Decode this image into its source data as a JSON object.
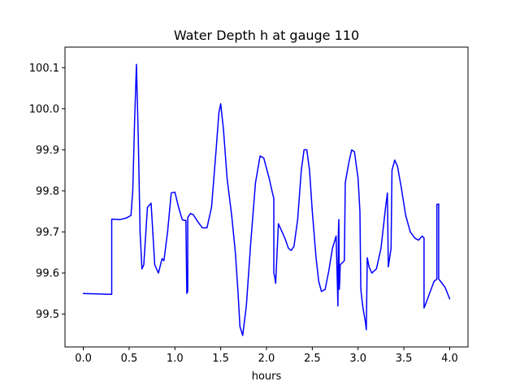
{
  "chart_data": {
    "type": "line",
    "title": "Water Depth h at gauge 110",
    "xlabel": "hours",
    "ylabel": "",
    "xlim": [
      -0.2,
      4.2
    ],
    "ylim": [
      99.42,
      100.15
    ],
    "grid": false,
    "legend": "none",
    "xticks": [
      0.0,
      0.5,
      1.0,
      1.5,
      2.0,
      2.5,
      3.0,
      3.5,
      4.0
    ],
    "xtick_labels": [
      "0.0",
      "0.5",
      "1.0",
      "1.5",
      "2.0",
      "2.5",
      "3.0",
      "3.5",
      "4.0"
    ],
    "yticks": [
      99.5,
      99.6,
      99.7,
      99.8,
      99.9,
      100.0,
      100.1
    ],
    "ytick_labels": [
      "99.5",
      "99.6",
      "99.7",
      "99.8",
      "99.9",
      "100.0",
      "100.1"
    ],
    "series": [
      {
        "name": "",
        "color": "#0000ff",
        "x": [
          0.0,
          0.15,
          0.31,
          0.31,
          0.4,
          0.47,
          0.52,
          0.54,
          0.56,
          0.58,
          0.6,
          0.62,
          0.64,
          0.66,
          0.7,
          0.74,
          0.78,
          0.82,
          0.86,
          0.88,
          0.92,
          0.96,
          1.0,
          1.04,
          1.08,
          1.1,
          1.12,
          1.13,
          1.13,
          1.14,
          1.14,
          1.17,
          1.2,
          1.25,
          1.3,
          1.35,
          1.4,
          1.45,
          1.48,
          1.5,
          1.53,
          1.57,
          1.62,
          1.66,
          1.69,
          1.71,
          1.74,
          1.78,
          1.83,
          1.88,
          1.93,
          1.97,
          2.0,
          2.03,
          2.07,
          2.08,
          2.08,
          2.09,
          2.1,
          2.13,
          2.17,
          2.2,
          2.24,
          2.27,
          2.3,
          2.34,
          2.38,
          2.41,
          2.44,
          2.47,
          2.5,
          2.54,
          2.57,
          2.6,
          2.64,
          2.68,
          2.72,
          2.76,
          2.78,
          2.785,
          2.79,
          2.795,
          2.8,
          2.805,
          2.85,
          2.86,
          2.9,
          2.93,
          2.96,
          3.0,
          3.02,
          3.03,
          3.05,
          3.08,
          3.09,
          3.1,
          3.12,
          3.15,
          3.2,
          3.25,
          3.3,
          3.32,
          3.33,
          3.36,
          3.37,
          3.4,
          3.43,
          3.47,
          3.52,
          3.57,
          3.62,
          3.66,
          3.7,
          3.72,
          3.72,
          3.73,
          3.78,
          3.83,
          3.86,
          3.86,
          3.88,
          3.88,
          3.9,
          3.95,
          4.0
        ],
        "y": [
          99.55,
          99.549,
          99.548,
          99.731,
          99.73,
          99.734,
          99.74,
          99.8,
          99.97,
          100.108,
          99.93,
          99.7,
          99.61,
          99.62,
          99.76,
          99.77,
          99.62,
          99.6,
          99.635,
          99.63,
          99.7,
          99.795,
          99.797,
          99.76,
          99.73,
          99.728,
          99.728,
          99.55,
          99.551,
          99.555,
          99.735,
          99.745,
          99.742,
          99.725,
          99.71,
          99.71,
          99.76,
          99.9,
          99.99,
          100.012,
          99.95,
          99.83,
          99.74,
          99.65,
          99.55,
          99.47,
          99.448,
          99.52,
          99.68,
          99.82,
          99.885,
          99.88,
          99.855,
          99.83,
          99.79,
          99.782,
          99.6,
          99.59,
          99.575,
          99.72,
          99.7,
          99.685,
          99.66,
          99.655,
          99.665,
          99.73,
          99.85,
          99.9,
          99.9,
          99.85,
          99.75,
          99.64,
          99.58,
          99.555,
          99.56,
          99.605,
          99.66,
          99.69,
          99.52,
          99.7,
          99.73,
          99.56,
          99.58,
          99.62,
          99.63,
          99.82,
          99.87,
          99.9,
          99.895,
          99.83,
          99.75,
          99.56,
          99.52,
          99.48,
          99.462,
          99.637,
          99.615,
          99.6,
          99.61,
          99.66,
          99.76,
          99.795,
          99.615,
          99.66,
          99.85,
          99.875,
          99.86,
          99.81,
          99.74,
          99.7,
          99.685,
          99.68,
          99.69,
          99.685,
          99.515,
          99.52,
          99.55,
          99.58,
          99.585,
          99.767,
          99.768,
          99.585,
          99.58,
          99.565,
          99.537
        ]
      }
    ]
  }
}
